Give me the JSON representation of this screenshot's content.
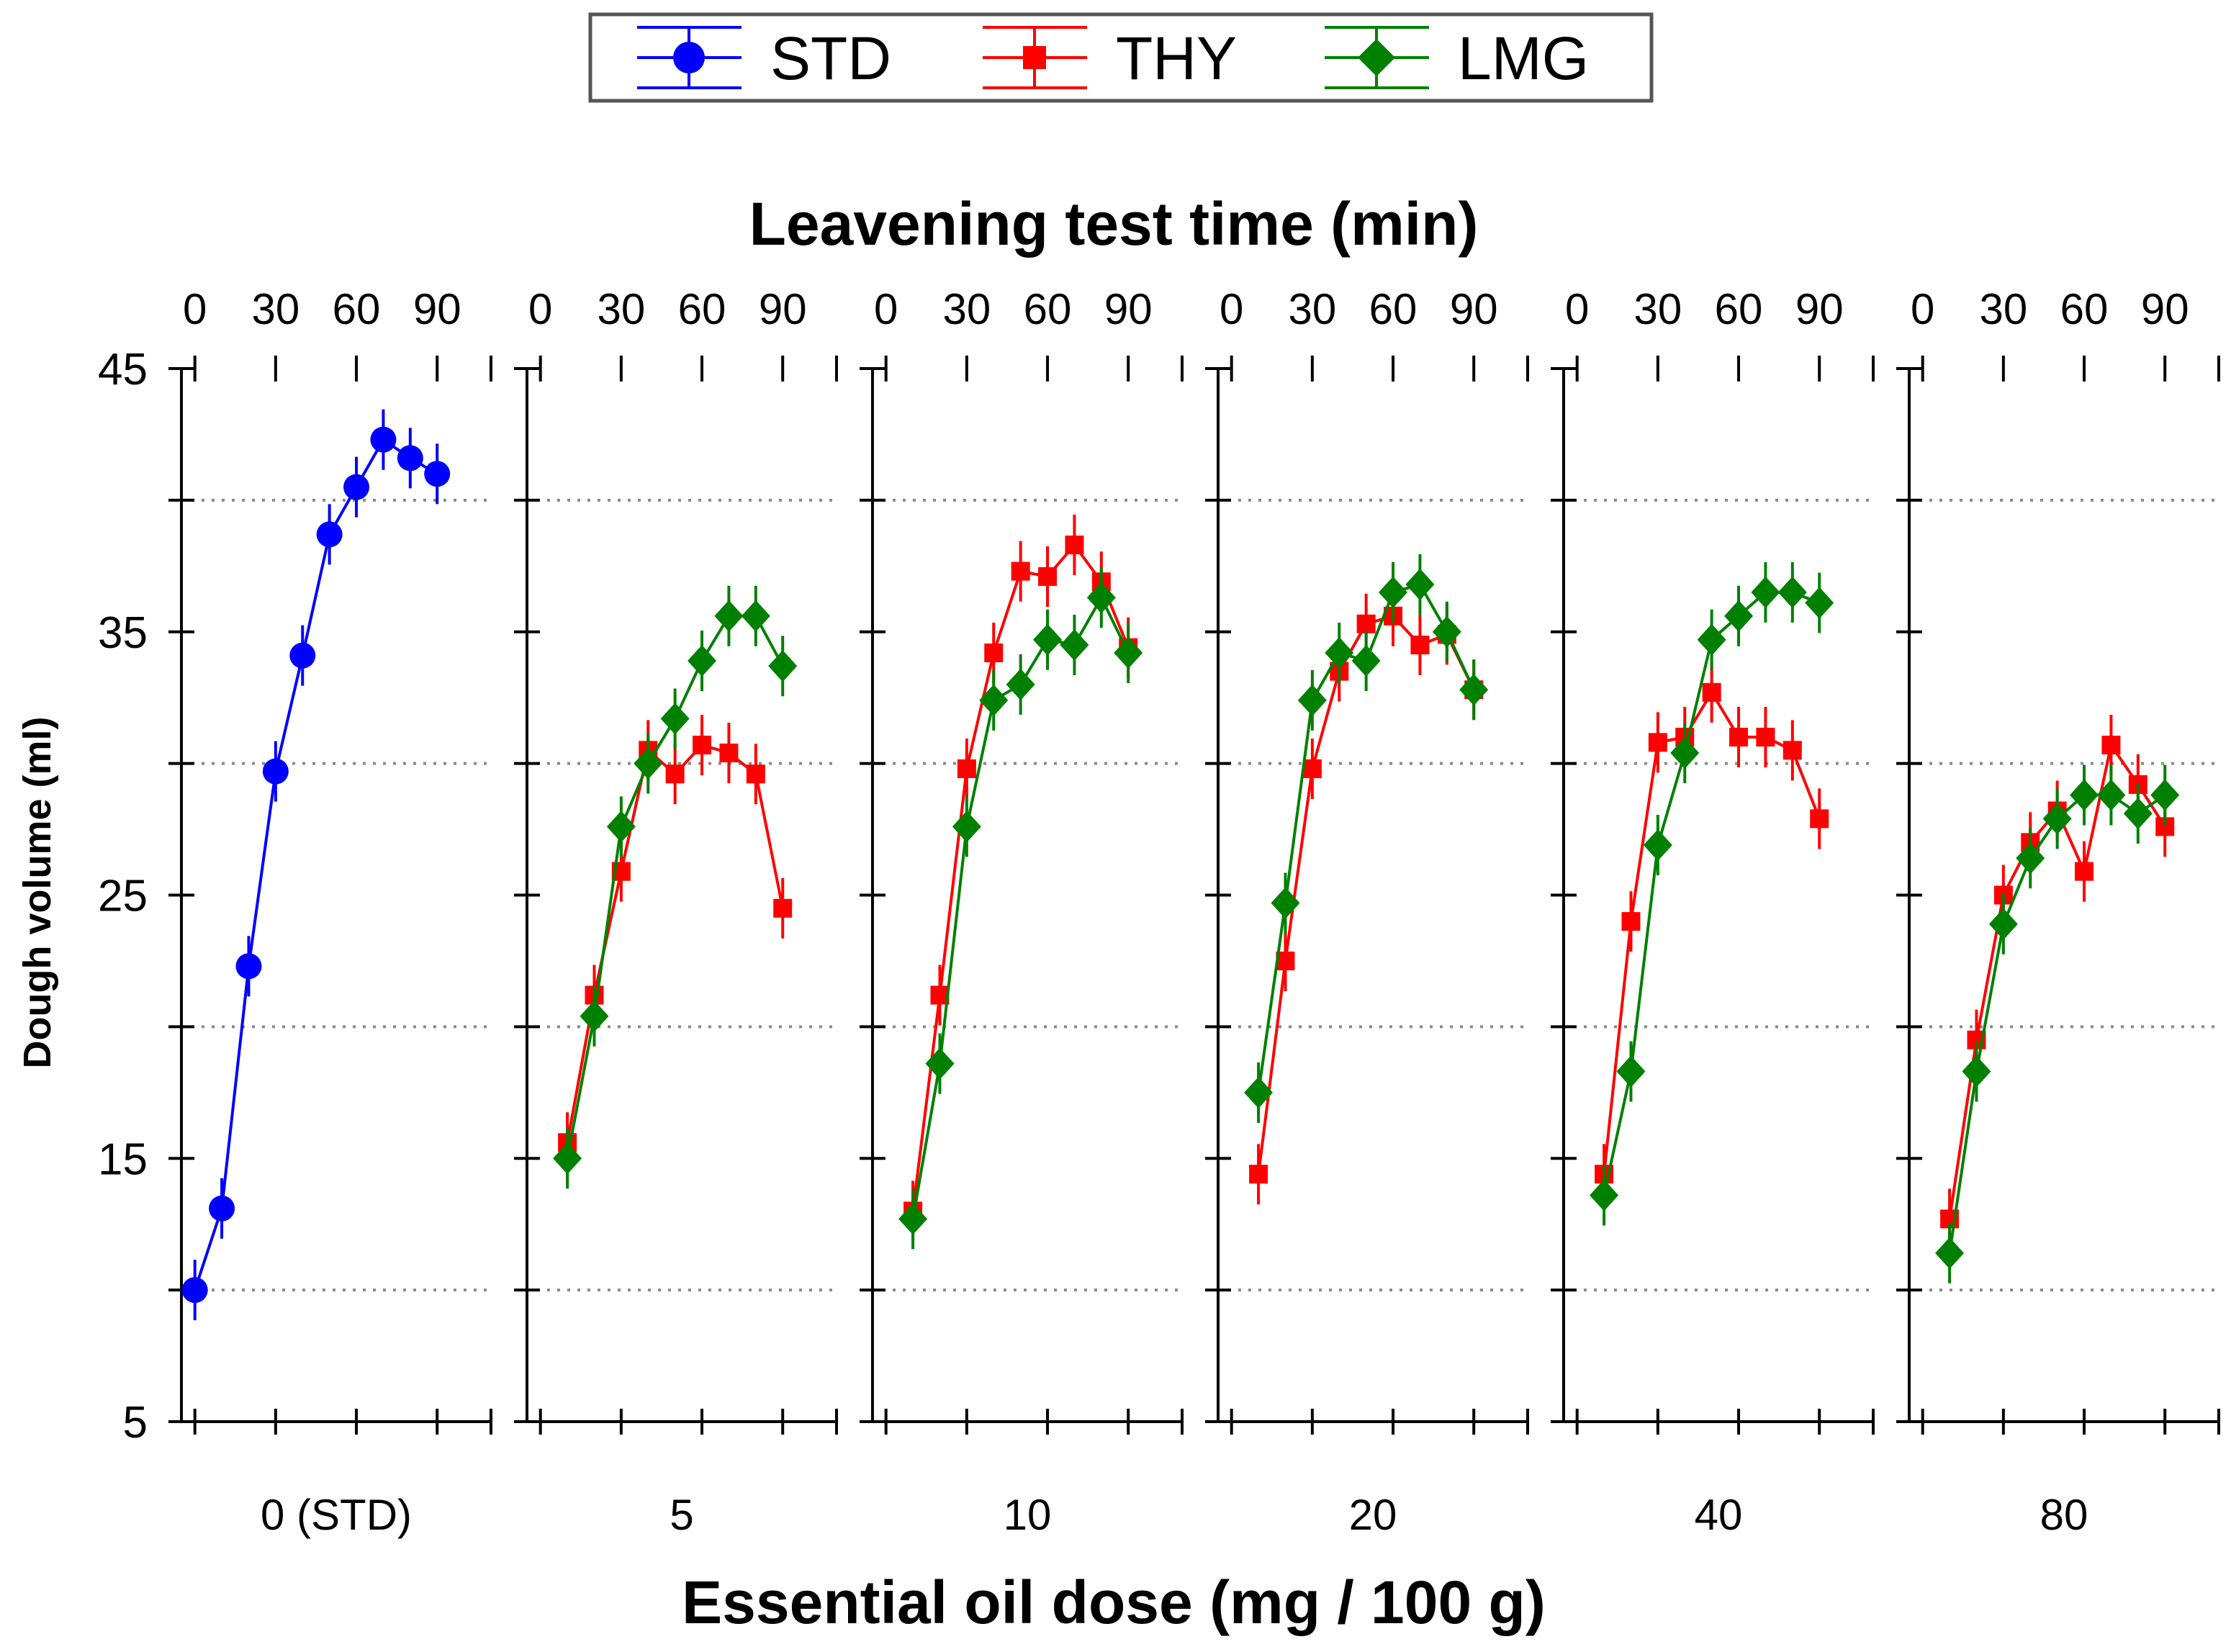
{
  "chart_data": {
    "type": "line",
    "title": "",
    "xlabel": "Essential oil dose (mg / 100 g)",
    "x2label": "Leavening test time (min)",
    "ylabel": "Dough volume (ml)",
    "ylim": [
      5,
      45
    ],
    "yticks": [
      5,
      15,
      25,
      35,
      45
    ],
    "ygrid": [
      10,
      20,
      30,
      40
    ],
    "time_ticks": [
      0,
      30,
      60,
      90
    ],
    "time_range": [
      -5,
      110
    ],
    "legend": {
      "position": "top-center",
      "entries": [
        {
          "name": "STD",
          "color": "#0000ff",
          "marker": "circle"
        },
        {
          "name": "THY",
          "color": "#ff0000",
          "marker": "square"
        },
        {
          "name": "LMG",
          "color": "#008000",
          "marker": "diamond"
        }
      ]
    },
    "panels": [
      {
        "label": "0 (STD)",
        "series": [
          {
            "name": "STD",
            "color": "#0000ff",
            "marker": "circle",
            "time": [
              0,
              10,
              20,
              30,
              40,
              50,
              60,
              70,
              80,
              90
            ],
            "values": [
              10.0,
              13.1,
              22.3,
              29.7,
              34.1,
              38.7,
              40.5,
              42.3,
              41.6,
              41.0
            ]
          }
        ]
      },
      {
        "label": "5",
        "series": [
          {
            "name": "THY",
            "color": "#ff0000",
            "marker": "square",
            "time": [
              10,
              20,
              30,
              40,
              50,
              60,
              70,
              80,
              90
            ],
            "values": [
              15.6,
              21.2,
              25.9,
              30.5,
              29.6,
              30.7,
              30.4,
              29.6,
              24.5
            ]
          },
          {
            "name": "LMG",
            "color": "#008000",
            "marker": "diamond",
            "time": [
              10,
              20,
              30,
              40,
              50,
              60,
              70,
              80,
              90
            ],
            "values": [
              15.0,
              20.4,
              27.6,
              30.0,
              31.7,
              33.9,
              35.6,
              35.6,
              33.7
            ]
          }
        ]
      },
      {
        "label": "10",
        "series": [
          {
            "name": "THY",
            "color": "#ff0000",
            "marker": "square",
            "time": [
              10,
              20,
              30,
              40,
              50,
              60,
              70,
              80,
              90
            ],
            "values": [
              13.0,
              21.2,
              29.8,
              34.2,
              37.3,
              37.1,
              38.3,
              36.9,
              34.4
            ]
          },
          {
            "name": "LMG",
            "color": "#008000",
            "marker": "diamond",
            "time": [
              10,
              20,
              30,
              40,
              50,
              60,
              70,
              80,
              90
            ],
            "values": [
              12.7,
              18.6,
              27.6,
              32.4,
              33.0,
              34.7,
              34.5,
              36.3,
              34.2
            ]
          }
        ]
      },
      {
        "label": "20",
        "series": [
          {
            "name": "THY",
            "color": "#ff0000",
            "marker": "square",
            "time": [
              10,
              20,
              30,
              40,
              50,
              60,
              70,
              80,
              90
            ],
            "values": [
              14.4,
              22.5,
              29.8,
              33.5,
              35.3,
              35.6,
              34.5,
              34.9,
              32.8
            ]
          },
          {
            "name": "LMG",
            "color": "#008000",
            "marker": "diamond",
            "time": [
              10,
              20,
              30,
              40,
              50,
              60,
              70,
              80,
              90
            ],
            "values": [
              17.5,
              24.7,
              32.4,
              34.2,
              33.9,
              36.5,
              36.8,
              35.0,
              32.8
            ]
          }
        ]
      },
      {
        "label": "40",
        "series": [
          {
            "name": "THY",
            "color": "#ff0000",
            "marker": "square",
            "time": [
              10,
              20,
              30,
              40,
              50,
              60,
              70,
              80,
              90
            ],
            "values": [
              14.4,
              24.0,
              30.8,
              31.0,
              32.7,
              31.0,
              31.0,
              30.5,
              27.9
            ]
          },
          {
            "name": "LMG",
            "color": "#008000",
            "marker": "diamond",
            "time": [
              10,
              20,
              30,
              40,
              50,
              60,
              70,
              80,
              90
            ],
            "values": [
              13.6,
              18.3,
              26.9,
              30.4,
              34.7,
              35.6,
              36.5,
              36.5,
              36.1
            ]
          }
        ]
      },
      {
        "label": "80",
        "series": [
          {
            "name": "THY",
            "color": "#ff0000",
            "marker": "square",
            "time": [
              10,
              20,
              30,
              40,
              50,
              60,
              70,
              80,
              90
            ],
            "values": [
              12.7,
              19.5,
              25.0,
              27.0,
              28.2,
              25.9,
              30.7,
              29.2,
              27.6
            ]
          },
          {
            "name": "LMG",
            "color": "#008000",
            "marker": "diamond",
            "time": [
              10,
              20,
              30,
              40,
              50,
              60,
              70,
              80,
              90
            ],
            "values": [
              11.4,
              18.3,
              23.9,
              26.4,
              27.9,
              28.8,
              28.8,
              28.1,
              28.8
            ]
          }
        ]
      }
    ]
  }
}
